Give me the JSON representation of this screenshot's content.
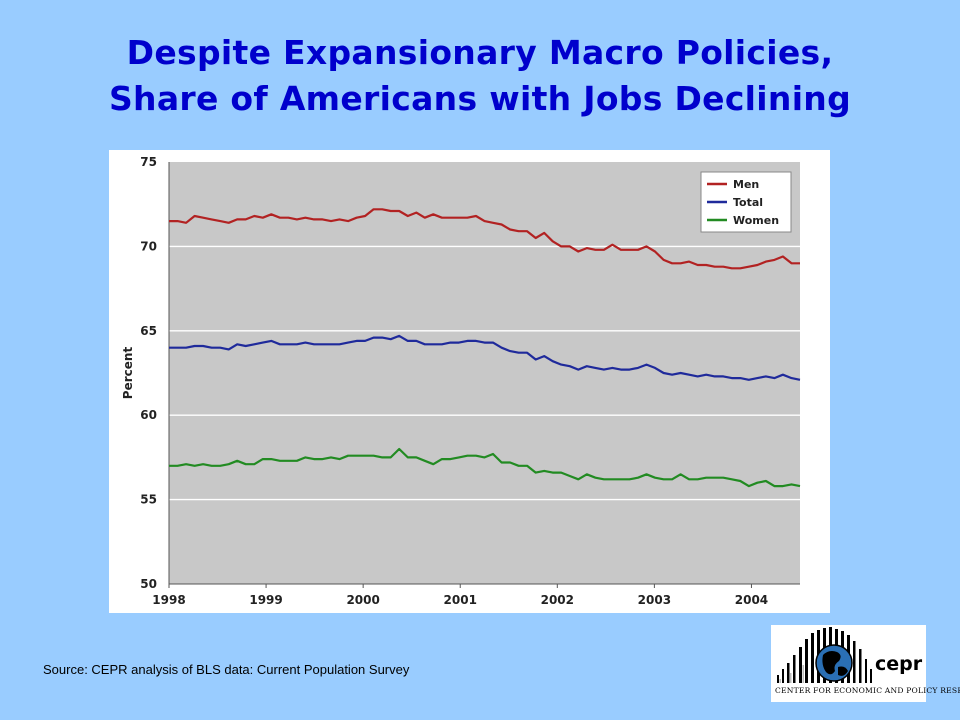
{
  "slide": {
    "title_line1": "Despite Expansionary Macro Policies,",
    "title_line2": "Share of Americans with Jobs Declining",
    "source": "Source:  CEPR analysis of BLS data:  Current Population Survey"
  },
  "logo": {
    "word": "cepr",
    "subtitle": "CENTER FOR ECONOMIC AND POLICY RESEARCH"
  },
  "colors": {
    "plot_bg": "#c8c8c8",
    "grid": "#ffffff",
    "men": "#b22222",
    "total": "#1f2a9b",
    "women": "#228b22"
  },
  "chart_data": {
    "type": "line",
    "title": "",
    "xlabel": "",
    "ylabel": "Percent",
    "x_tick_labels": [
      "1998",
      "1999",
      "2000",
      "2001",
      "2002",
      "2003",
      "2004"
    ],
    "x_range": [
      1998.0,
      2004.5
    ],
    "ylim": [
      50,
      75
    ],
    "y_tick_labels": [
      "50",
      "55",
      "60",
      "65",
      "70",
      "75"
    ],
    "grid": "horizontal",
    "legend_position": "top-right",
    "series": [
      {
        "name": "Men",
        "color": "#b22222",
        "values": [
          71.5,
          71.5,
          71.4,
          71.8,
          71.7,
          71.6,
          71.5,
          71.4,
          71.6,
          71.6,
          71.8,
          71.7,
          71.9,
          71.7,
          71.7,
          71.6,
          71.7,
          71.6,
          71.6,
          71.5,
          71.6,
          71.5,
          71.7,
          71.8,
          72.2,
          72.2,
          72.1,
          72.1,
          71.8,
          72.0,
          71.7,
          71.9,
          71.7,
          71.7,
          71.7,
          71.7,
          71.8,
          71.5,
          71.4,
          71.3,
          71.0,
          70.9,
          70.9,
          70.5,
          70.8,
          70.3,
          70.0,
          70.0,
          69.7,
          69.9,
          69.8,
          69.8,
          70.1,
          69.8,
          69.8,
          69.8,
          70.0,
          69.7,
          69.2,
          69.0,
          69.0,
          69.1,
          68.9,
          68.9,
          68.8,
          68.8,
          68.7,
          68.7,
          68.8,
          68.9,
          69.1,
          69.2,
          69.4,
          69.0,
          69.0
        ]
      },
      {
        "name": "Total",
        "color": "#1f2a9b",
        "values": [
          64.0,
          64.0,
          64.0,
          64.1,
          64.1,
          64.0,
          64.0,
          63.9,
          64.2,
          64.1,
          64.2,
          64.3,
          64.4,
          64.2,
          64.2,
          64.2,
          64.3,
          64.2,
          64.2,
          64.2,
          64.2,
          64.3,
          64.4,
          64.4,
          64.6,
          64.6,
          64.5,
          64.7,
          64.4,
          64.4,
          64.2,
          64.2,
          64.2,
          64.3,
          64.3,
          64.4,
          64.4,
          64.3,
          64.3,
          64.0,
          63.8,
          63.7,
          63.7,
          63.3,
          63.5,
          63.2,
          63.0,
          62.9,
          62.7,
          62.9,
          62.8,
          62.7,
          62.8,
          62.7,
          62.7,
          62.8,
          63.0,
          62.8,
          62.5,
          62.4,
          62.5,
          62.4,
          62.3,
          62.4,
          62.3,
          62.3,
          62.2,
          62.2,
          62.1,
          62.2,
          62.3,
          62.2,
          62.4,
          62.2,
          62.1
        ]
      },
      {
        "name": "Women",
        "color": "#228b22",
        "values": [
          57.0,
          57.0,
          57.1,
          57.0,
          57.1,
          57.0,
          57.0,
          57.1,
          57.3,
          57.1,
          57.1,
          57.4,
          57.4,
          57.3,
          57.3,
          57.3,
          57.5,
          57.4,
          57.4,
          57.5,
          57.4,
          57.6,
          57.6,
          57.6,
          57.6,
          57.5,
          57.5,
          58.0,
          57.5,
          57.5,
          57.3,
          57.1,
          57.4,
          57.4,
          57.5,
          57.6,
          57.6,
          57.5,
          57.7,
          57.2,
          57.2,
          57.0,
          57.0,
          56.6,
          56.7,
          56.6,
          56.6,
          56.4,
          56.2,
          56.5,
          56.3,
          56.2,
          56.2,
          56.2,
          56.2,
          56.3,
          56.5,
          56.3,
          56.2,
          56.2,
          56.5,
          56.2,
          56.2,
          56.3,
          56.3,
          56.3,
          56.2,
          56.1,
          55.8,
          56.0,
          56.1,
          55.8,
          55.8,
          55.9,
          55.8
        ]
      }
    ]
  }
}
